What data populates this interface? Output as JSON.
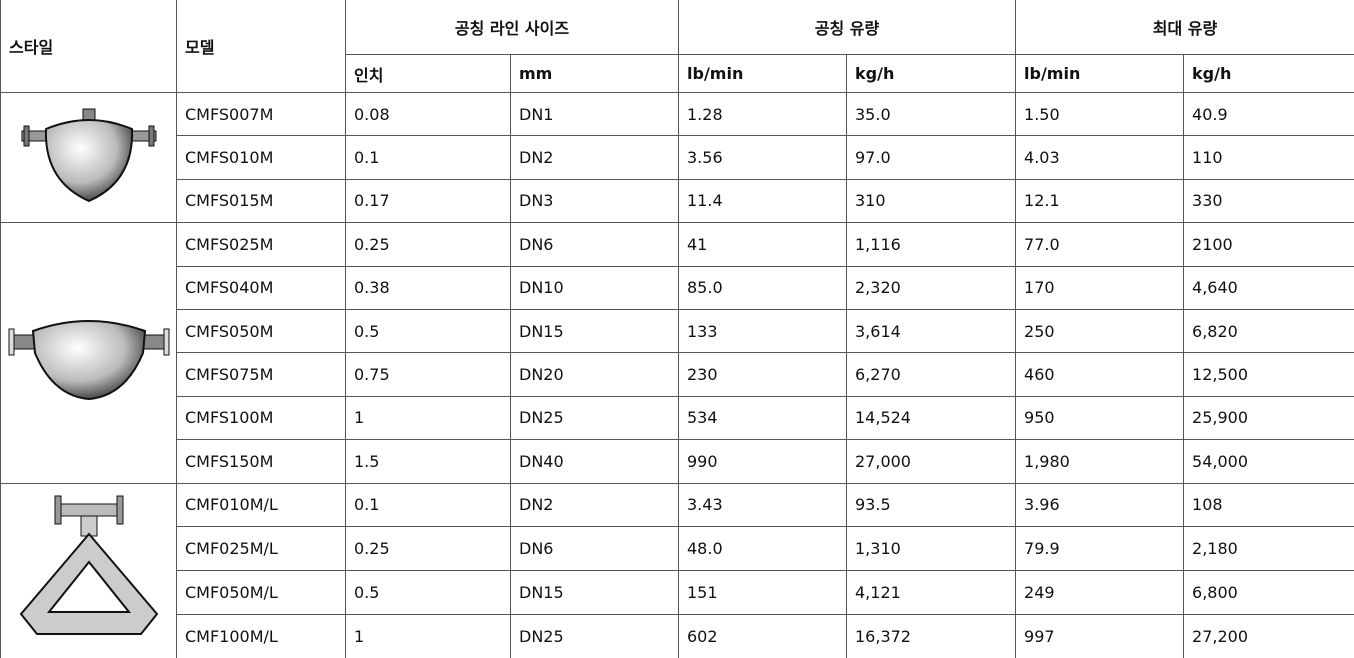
{
  "table": {
    "header": {
      "groups": [
        "스타일",
        "모델",
        "공칭 라인 사이즈",
        "공칭 유량",
        "최대 유량"
      ],
      "units": [
        "인치",
        "mm",
        "lb/min",
        "kg/h",
        "lb/min",
        "kg/h"
      ]
    },
    "rows": [
      [
        "CMFS007M",
        "0.08",
        "DN1",
        "1.28",
        "35.0",
        "1.50",
        "40.9"
      ],
      [
        "CMFS010M",
        "0.1",
        "DN2",
        "3.56",
        "97.0",
        "4.03",
        "110"
      ],
      [
        "CMFS015M",
        "0.17",
        "DN3",
        "11.4",
        "310",
        "12.1",
        "330"
      ],
      [
        "CMFS025M",
        "0.25",
        "DN6",
        "41",
        "1,116",
        "77.0",
        "2100"
      ],
      [
        "CMFS040M",
        "0.38",
        "DN10",
        "85.0",
        "2,320",
        "170",
        "4,640"
      ],
      [
        "CMFS050M",
        "0.5",
        "DN15",
        "133",
        "3,614",
        "250",
        "6,820"
      ],
      [
        "CMFS075M",
        "0.75",
        "DN20",
        "230",
        "6,270",
        "460",
        "12,500"
      ],
      [
        "CMFS100M",
        "1",
        "DN25",
        "534",
        "14,524",
        "950",
        "25,900"
      ],
      [
        "CMFS150M",
        "1.5",
        "DN40",
        "990",
        "27,000",
        "1,980",
        "54,000"
      ],
      [
        "CMF010M/L",
        "0.1",
        "DN2",
        "3.43",
        "93.5",
        "3.96",
        "108"
      ],
      [
        "CMF025M/L",
        "0.25",
        "DN6",
        "48.0",
        "1,310",
        "79.9",
        "2,180"
      ],
      [
        "CMF050M/L",
        "0.5",
        "DN15",
        "151",
        "4,121",
        "249",
        "6,800"
      ],
      [
        "CMF100M/L",
        "1",
        "DN25",
        "602",
        "16,372",
        "997",
        "27,200"
      ]
    ]
  }
}
